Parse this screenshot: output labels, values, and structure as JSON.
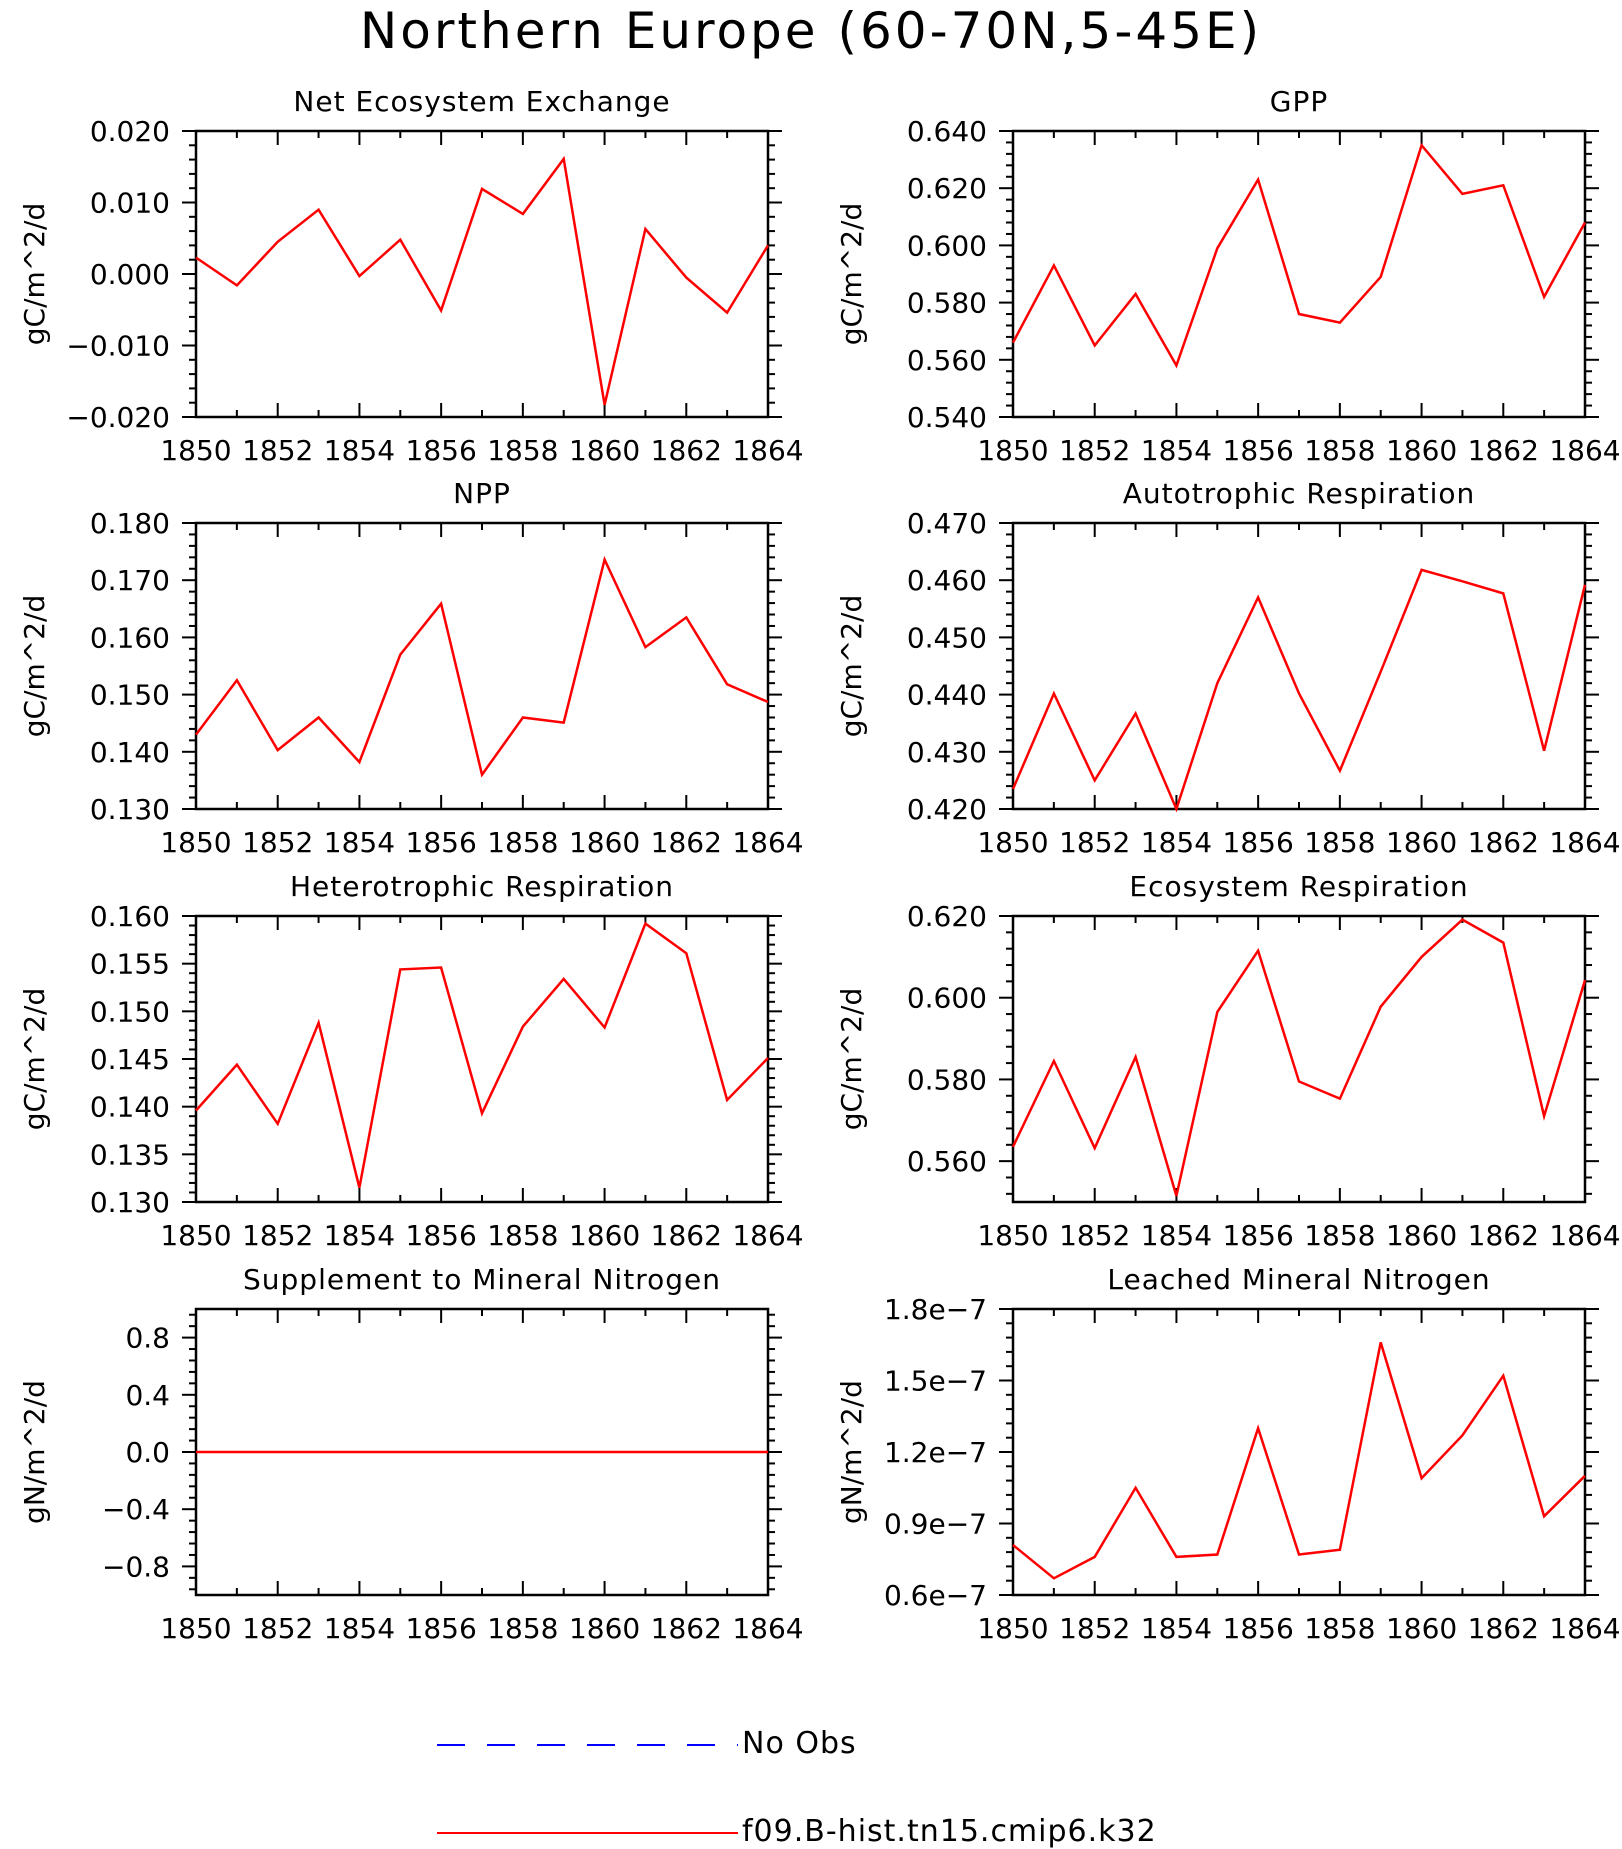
{
  "title": "Northern Europe (60-70N,5-45E)",
  "legend": {
    "items": [
      {
        "label": "No Obs",
        "color": "#0000ff",
        "dash": "dashed"
      },
      {
        "label": "f09.B-hist.tn15.cmip6.k32",
        "color": "#ff0000",
        "dash": "solid"
      }
    ]
  },
  "chart_data": [
    {
      "type": "line",
      "title": "Net Ecosystem Exchange",
      "ylabel": "gC/m^2/d",
      "x": [
        1850,
        1851,
        1852,
        1853,
        1854,
        1855,
        1856,
        1857,
        1858,
        1859,
        1860,
        1861,
        1862,
        1863,
        1864
      ],
      "xticks": [
        1850,
        1852,
        1854,
        1856,
        1858,
        1860,
        1862,
        1864
      ],
      "xlim": [
        1850,
        1864
      ],
      "ylim": [
        -0.02,
        0.02
      ],
      "yticks": [
        -0.02,
        -0.01,
        0.0,
        0.01,
        0.02
      ],
      "ytick_labels": [
        "−0.020",
        "−0.010",
        "0.000",
        "0.010",
        "0.020"
      ],
      "series": [
        {
          "color": "#ff0000",
          "values": [
            0.0023,
            -0.0016,
            0.0045,
            0.009,
            -0.0003,
            0.0048,
            -0.0051,
            0.0119,
            0.0084,
            0.0161,
            -0.0183,
            0.0063,
            -0.0005,
            -0.0054,
            0.004
          ]
        }
      ]
    },
    {
      "type": "line",
      "title": "GPP",
      "ylabel": "gC/m^2/d",
      "x": [
        1850,
        1851,
        1852,
        1853,
        1854,
        1855,
        1856,
        1857,
        1858,
        1859,
        1860,
        1861,
        1862,
        1863,
        1864
      ],
      "xticks": [
        1850,
        1852,
        1854,
        1856,
        1858,
        1860,
        1862,
        1864
      ],
      "xlim": [
        1850,
        1864
      ],
      "ylim": [
        0.54,
        0.64
      ],
      "yticks": [
        0.54,
        0.56,
        0.58,
        0.6,
        0.62,
        0.64
      ],
      "ytick_labels": [
        "0.540",
        "0.560",
        "0.580",
        "0.600",
        "0.620",
        "0.640"
      ],
      "series": [
        {
          "color": "#ff0000",
          "values": [
            0.566,
            0.593,
            0.565,
            0.583,
            0.558,
            0.599,
            0.623,
            0.576,
            0.573,
            0.589,
            0.635,
            0.618,
            0.621,
            0.582,
            0.608
          ]
        }
      ]
    },
    {
      "type": "line",
      "title": "NPP",
      "ylabel": "gC/m^2/d",
      "x": [
        1850,
        1851,
        1852,
        1853,
        1854,
        1855,
        1856,
        1857,
        1858,
        1859,
        1860,
        1861,
        1862,
        1863,
        1864
      ],
      "xticks": [
        1850,
        1852,
        1854,
        1856,
        1858,
        1860,
        1862,
        1864
      ],
      "xlim": [
        1850,
        1864
      ],
      "ylim": [
        0.13,
        0.18
      ],
      "yticks": [
        0.13,
        0.14,
        0.15,
        0.16,
        0.17,
        0.18
      ],
      "ytick_labels": [
        "0.130",
        "0.140",
        "0.150",
        "0.160",
        "0.170",
        "0.180"
      ],
      "series": [
        {
          "color": "#ff0000",
          "values": [
            0.143,
            0.1525,
            0.1403,
            0.146,
            0.1382,
            0.157,
            0.1659,
            0.136,
            0.146,
            0.1451,
            0.1736,
            0.1583,
            0.1635,
            0.1518,
            0.1487
          ]
        }
      ]
    },
    {
      "type": "line",
      "title": "Autotrophic Respiration",
      "ylabel": "gC/m^2/d",
      "x": [
        1850,
        1851,
        1852,
        1853,
        1854,
        1855,
        1856,
        1857,
        1858,
        1859,
        1860,
        1861,
        1862,
        1863,
        1864
      ],
      "xticks": [
        1850,
        1852,
        1854,
        1856,
        1858,
        1860,
        1862,
        1864
      ],
      "xlim": [
        1850,
        1864
      ],
      "ylim": [
        0.42,
        0.47
      ],
      "yticks": [
        0.42,
        0.43,
        0.44,
        0.45,
        0.46,
        0.47
      ],
      "ytick_labels": [
        "0.420",
        "0.430",
        "0.440",
        "0.450",
        "0.460",
        "0.470"
      ],
      "series": [
        {
          "color": "#ff0000",
          "values": [
            0.4235,
            0.4402,
            0.425,
            0.4367,
            0.42,
            0.442,
            0.457,
            0.4402,
            0.4267,
            0.444,
            0.4618,
            0.4598,
            0.4577,
            0.4302,
            0.4592
          ]
        }
      ]
    },
    {
      "type": "line",
      "title": "Heterotrophic Respiration",
      "ylabel": "gC/m^2/d",
      "x": [
        1850,
        1851,
        1852,
        1853,
        1854,
        1855,
        1856,
        1857,
        1858,
        1859,
        1860,
        1861,
        1862,
        1863,
        1864
      ],
      "xticks": [
        1850,
        1852,
        1854,
        1856,
        1858,
        1860,
        1862,
        1864
      ],
      "xlim": [
        1850,
        1864
      ],
      "ylim": [
        0.13,
        0.16
      ],
      "yticks": [
        0.13,
        0.135,
        0.14,
        0.145,
        0.15,
        0.155,
        0.16
      ],
      "ytick_labels": [
        "0.130",
        "0.135",
        "0.140",
        "0.145",
        "0.150",
        "0.155",
        "0.160"
      ],
      "series": [
        {
          "color": "#ff0000",
          "values": [
            0.1396,
            0.1444,
            0.1382,
            0.1488,
            0.1315,
            0.1544,
            0.1546,
            0.1393,
            0.1484,
            0.1534,
            0.1483,
            0.1592,
            0.1561,
            0.1407,
            0.1451
          ]
        }
      ]
    },
    {
      "type": "line",
      "title": "Ecosystem Respiration",
      "ylabel": "gC/m^2/d",
      "x": [
        1850,
        1851,
        1852,
        1853,
        1854,
        1855,
        1856,
        1857,
        1858,
        1859,
        1860,
        1861,
        1862,
        1863,
        1864
      ],
      "xticks": [
        1850,
        1852,
        1854,
        1856,
        1858,
        1860,
        1862,
        1864
      ],
      "xlim": [
        1850,
        1864
      ],
      "ylim": [
        0.55,
        0.62
      ],
      "yticks": [
        0.56,
        0.58,
        0.6,
        0.62
      ],
      "ytick_labels": [
        "0.560",
        "0.580",
        "0.600",
        "0.620"
      ],
      "series": [
        {
          "color": "#ff0000",
          "values": [
            0.5635,
            0.5845,
            0.5632,
            0.5855,
            0.5515,
            0.5965,
            0.6115,
            0.5795,
            0.5753,
            0.5978,
            0.61,
            0.6191,
            0.6135,
            0.571,
            0.6043
          ]
        }
      ]
    },
    {
      "type": "line",
      "title": "Supplement to Mineral Nitrogen",
      "ylabel": "gN/m^2/d",
      "x": [
        1850,
        1851,
        1852,
        1853,
        1854,
        1855,
        1856,
        1857,
        1858,
        1859,
        1860,
        1861,
        1862,
        1863,
        1864
      ],
      "xticks": [
        1850,
        1852,
        1854,
        1856,
        1858,
        1860,
        1862,
        1864
      ],
      "xlim": [
        1850,
        1864
      ],
      "ylim": [
        -1.0,
        1.0
      ],
      "yticks": [
        -0.8,
        -0.4,
        0.0,
        0.4,
        0.8
      ],
      "ytick_labels": [
        "−0.8",
        "−0.4",
        "0.0",
        "0.4",
        "0.8"
      ],
      "series": [
        {
          "color": "#ff0000",
          "values": [
            0,
            0,
            0,
            0,
            0,
            0,
            0,
            0,
            0,
            0,
            0,
            0,
            0,
            0,
            0
          ]
        }
      ]
    },
    {
      "type": "line",
      "title": "Leached Mineral Nitrogen",
      "ylabel": "gN/m^2/d",
      "x": [
        1850,
        1851,
        1852,
        1853,
        1854,
        1855,
        1856,
        1857,
        1858,
        1859,
        1860,
        1861,
        1862,
        1863,
        1864
      ],
      "xticks": [
        1850,
        1852,
        1854,
        1856,
        1858,
        1860,
        1862,
        1864
      ],
      "xlim": [
        1850,
        1864
      ],
      "ylim": [
        6e-08,
        1.8e-07
      ],
      "yticks": [
        6e-08,
        9e-08,
        1.2e-07,
        1.5e-07,
        1.8e-07
      ],
      "ytick_labels": [
        "0.6e−7",
        "0.9e−7",
        "1.2e−7",
        "1.5e−7",
        "1.8e−7"
      ],
      "series": [
        {
          "color": "#ff0000",
          "values": [
            8.1e-08,
            6.7e-08,
            7.6e-08,
            1.05e-07,
            7.6e-08,
            7.7e-08,
            1.3e-07,
            7.7e-08,
            7.9e-08,
            1.66e-07,
            1.09e-07,
            1.27e-07,
            1.52e-07,
            9.3e-08,
            1.1e-07
          ]
        }
      ]
    }
  ]
}
